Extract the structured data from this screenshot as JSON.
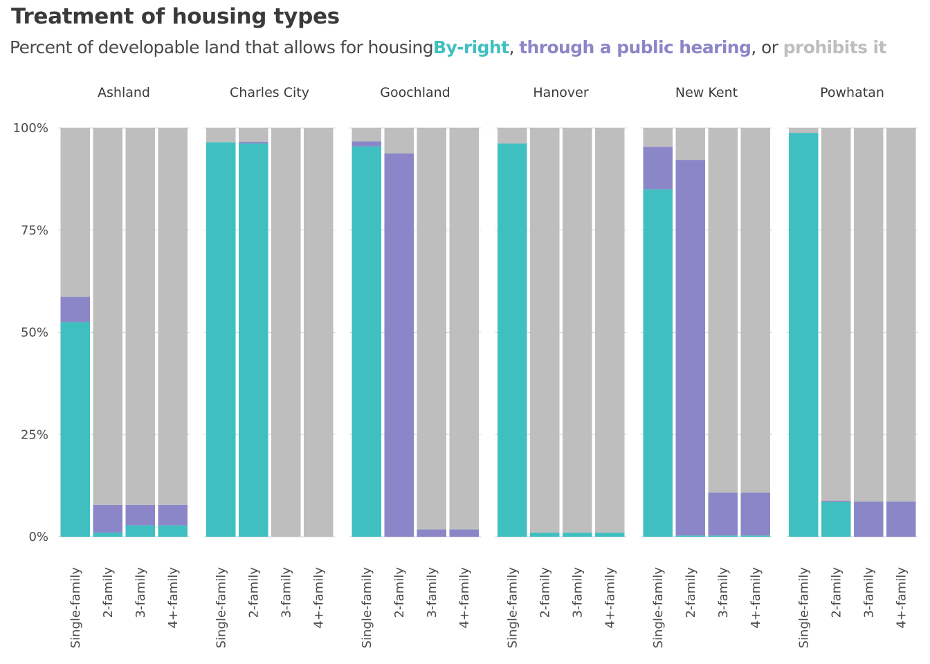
{
  "title": "Treatment of housing  types",
  "subtitle": {
    "prefix": "Percent of developable land  that allows for housing",
    "byright": "By-right",
    "sep1": ", ",
    "hearing": "through a public hearing",
    "sep2": ", or ",
    "prohibits": "prohibits it"
  },
  "colors": {
    "byright": "#40bfc1",
    "hearing": "#8b86c8",
    "prohibits": "#bebebe",
    "grid": "#d4d4d4",
    "axis": "#cfcfcf"
  },
  "chart_data": {
    "type": "bar",
    "stacked": true,
    "facets": [
      "Ashland",
      "Charles City",
      "Goochland",
      "Hanover",
      "New Kent",
      "Powhatan"
    ],
    "categories": [
      "Single-family",
      "2-family",
      "3-family",
      "4+-family"
    ],
    "yticks": [
      "0%",
      "25%",
      "50%",
      "75%",
      "100%"
    ],
    "ylim": [
      0,
      100
    ],
    "series": [
      {
        "name": "By-right",
        "values": [
          [
            52.5,
            1.0,
            2.8,
            2.8
          ],
          [
            96.5,
            96.2,
            0,
            0
          ],
          [
            95.5,
            0,
            0,
            0
          ],
          [
            96.2,
            1.0,
            1.0,
            1.0
          ],
          [
            85.0,
            0.3,
            0.3,
            0.3
          ],
          [
            98.8,
            8.5,
            0,
            0
          ]
        ]
      },
      {
        "name": "through a public hearing",
        "values": [
          [
            6.2,
            6.8,
            5.0,
            5.0
          ],
          [
            0,
            0.4,
            0,
            0
          ],
          [
            1.2,
            93.8,
            1.8,
            1.8
          ],
          [
            0,
            0,
            0,
            0
          ],
          [
            10.4,
            91.9,
            10.5,
            10.5
          ],
          [
            0,
            0.3,
            8.6,
            8.6
          ]
        ]
      },
      {
        "name": "prohibits it",
        "values": [
          [
            41.3,
            92.2,
            92.2,
            92.2
          ],
          [
            3.5,
            3.4,
            100,
            100
          ],
          [
            3.3,
            6.2,
            98.2,
            98.2
          ],
          [
            3.8,
            99.0,
            99.0,
            99.0
          ],
          [
            4.6,
            7.8,
            89.2,
            89.2
          ],
          [
            1.2,
            91.2,
            91.4,
            91.4
          ]
        ]
      }
    ]
  }
}
